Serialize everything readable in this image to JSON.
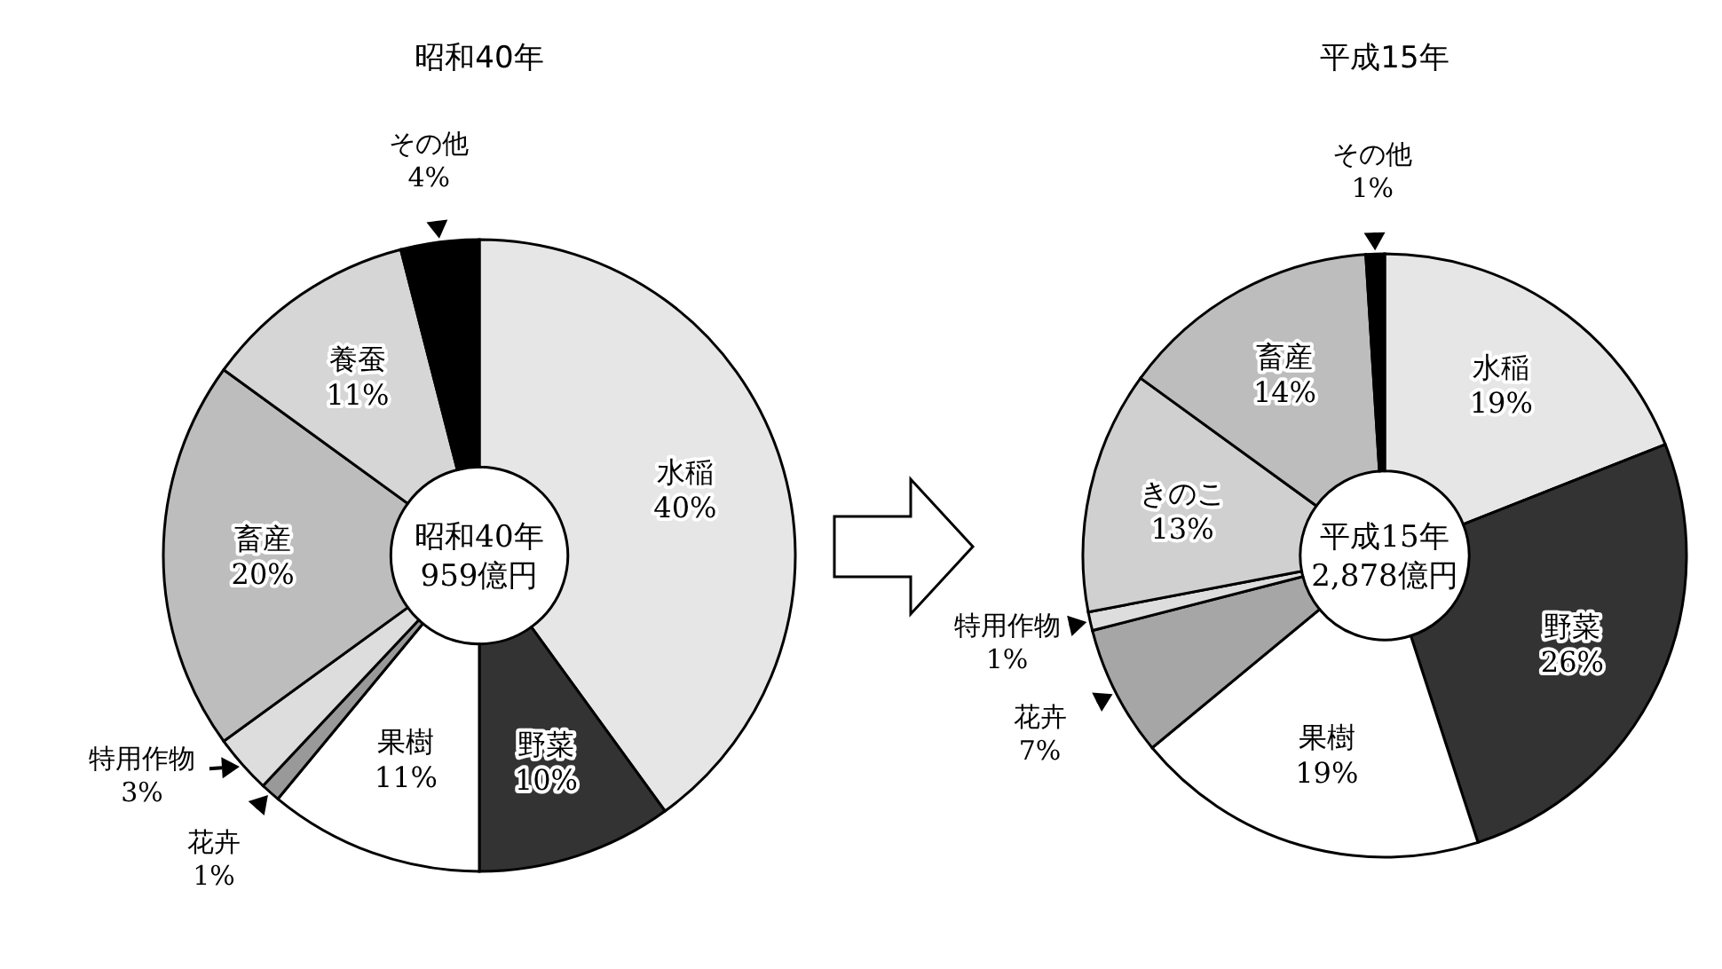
{
  "chart_data": [
    {
      "type": "donut",
      "title": "昭和40年",
      "categories": [
        "水稲",
        "野菜",
        "果樹",
        "花卉",
        "特用作物",
        "畜産",
        "養蚕",
        "その他"
      ],
      "values": [
        40,
        10,
        11,
        1,
        3,
        20,
        11,
        4
      ],
      "value_labels": [
        "40%",
        "10%",
        "11%",
        "1%",
        "3%",
        "20%",
        "11%",
        "4%"
      ],
      "colors": [
        "#e6e6e6",
        "#333333",
        "#ffffff",
        "#999999",
        "#dddddd",
        "#bdbdbd",
        "#d6d6d6",
        "#000000"
      ],
      "annotations": [
        "昭和40年",
        "959億円"
      ]
    },
    {
      "type": "donut",
      "title": "平成15年",
      "categories": [
        "水稲",
        "野菜",
        "果樹",
        "花卉",
        "特用作物",
        "きのこ",
        "畜産",
        "その他"
      ],
      "values": [
        19,
        26,
        19,
        7,
        1,
        13,
        14,
        1
      ],
      "value_labels": [
        "19%",
        "26%",
        "19%",
        "7%",
        "1%",
        "13%",
        "14%",
        "1%"
      ],
      "colors": [
        "#e6e6e6",
        "#333333",
        "#ffffff",
        "#a6a6a6",
        "#dddddd",
        "#d0d0d0",
        "#bdbdbd",
        "#000000"
      ],
      "annotations": [
        "平成15年",
        "2,878億円"
      ]
    }
  ]
}
